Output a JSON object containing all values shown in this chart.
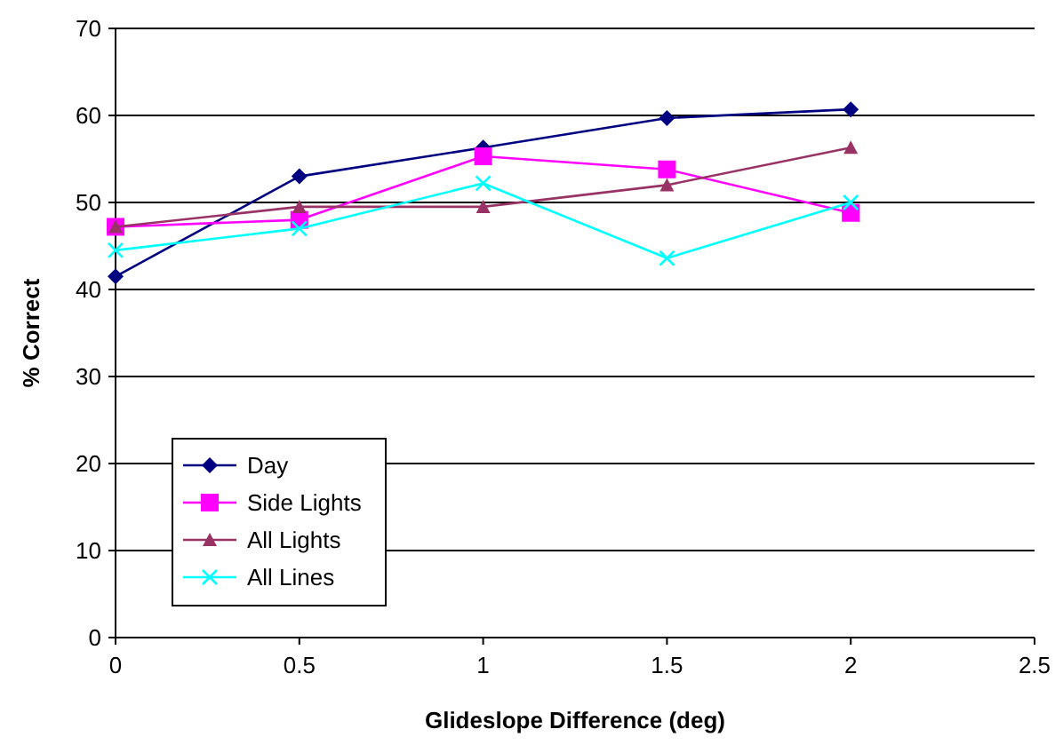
{
  "chart_data": {
    "type": "line",
    "xlabel": "Glideslope Difference (deg)",
    "ylabel": "% Correct",
    "x": [
      0,
      0.5,
      1,
      1.5,
      2
    ],
    "series": [
      {
        "name": "Day",
        "color": "#000080",
        "marker": "diamond",
        "values": [
          41.5,
          53,
          56.3,
          59.7,
          60.7
        ]
      },
      {
        "name": "Side Lights",
        "color": "#ff00ff",
        "marker": "square",
        "values": [
          47.2,
          48,
          55.3,
          53.8,
          48.8
        ]
      },
      {
        "name": "All Lights",
        "color": "#993366",
        "marker": "triangle",
        "values": [
          47.2,
          49.5,
          49.5,
          52,
          56.3
        ]
      },
      {
        "name": "All Lines",
        "color": "#00ffff",
        "marker": "cross",
        "values": [
          44.5,
          47,
          52.2,
          43.6,
          50
        ]
      }
    ],
    "xlim": [
      0,
      2.5
    ],
    "xticks": [
      0,
      0.5,
      1,
      1.5,
      2,
      2.5
    ],
    "ylim": [
      0,
      70
    ],
    "yticks": [
      0,
      10,
      20,
      30,
      40,
      50,
      60,
      70
    ],
    "grid": "y",
    "legend": "bottom left",
    "line_style": "solid"
  }
}
